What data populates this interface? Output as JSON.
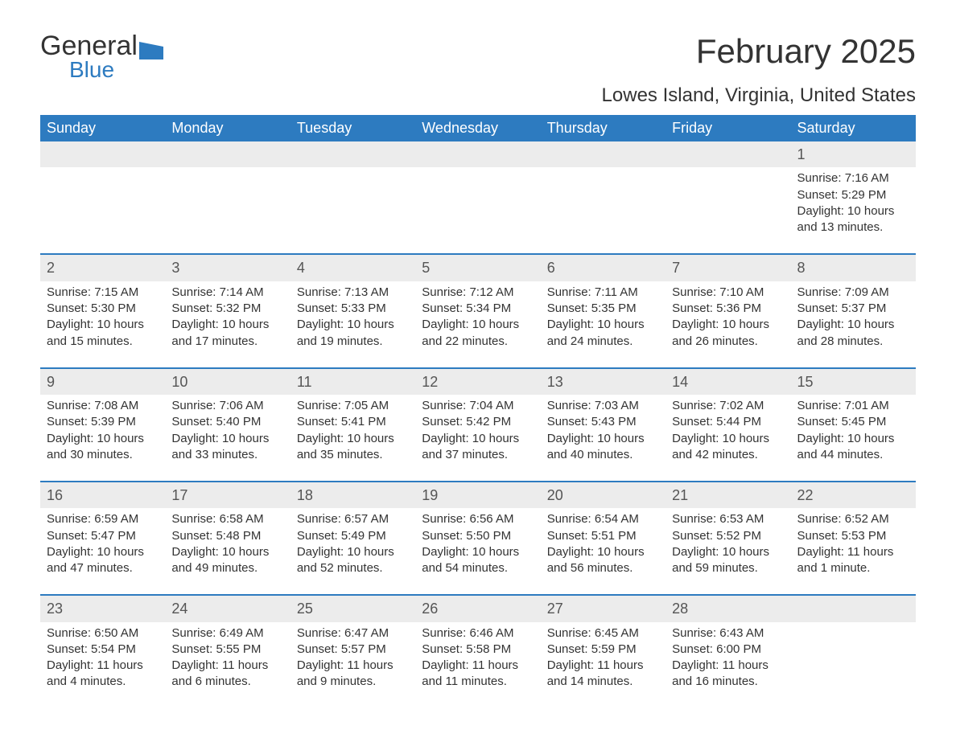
{
  "brand": {
    "word1": "General",
    "word2": "Blue",
    "logo_color": "#2d7bc0"
  },
  "title": "February 2025",
  "location": "Lowes Island, Virginia, United States",
  "colors": {
    "header_bg": "#2d7bc0",
    "header_text": "#ffffff",
    "daynum_bg": "#ececec",
    "row_border": "#2d7bc0",
    "body_text": "#333333",
    "page_bg": "#ffffff"
  },
  "typography": {
    "title_fontsize": 42,
    "location_fontsize": 24,
    "header_fontsize": 18,
    "cell_fontsize": 15,
    "daynum_fontsize": 18
  },
  "days_of_week": [
    "Sunday",
    "Monday",
    "Tuesday",
    "Wednesday",
    "Thursday",
    "Friday",
    "Saturday"
  ],
  "weeks": [
    [
      null,
      null,
      null,
      null,
      null,
      null,
      {
        "num": "1",
        "sunrise": "Sunrise: 7:16 AM",
        "sunset": "Sunset: 5:29 PM",
        "daylight": "Daylight: 10 hours and 13 minutes."
      }
    ],
    [
      {
        "num": "2",
        "sunrise": "Sunrise: 7:15 AM",
        "sunset": "Sunset: 5:30 PM",
        "daylight": "Daylight: 10 hours and 15 minutes."
      },
      {
        "num": "3",
        "sunrise": "Sunrise: 7:14 AM",
        "sunset": "Sunset: 5:32 PM",
        "daylight": "Daylight: 10 hours and 17 minutes."
      },
      {
        "num": "4",
        "sunrise": "Sunrise: 7:13 AM",
        "sunset": "Sunset: 5:33 PM",
        "daylight": "Daylight: 10 hours and 19 minutes."
      },
      {
        "num": "5",
        "sunrise": "Sunrise: 7:12 AM",
        "sunset": "Sunset: 5:34 PM",
        "daylight": "Daylight: 10 hours and 22 minutes."
      },
      {
        "num": "6",
        "sunrise": "Sunrise: 7:11 AM",
        "sunset": "Sunset: 5:35 PM",
        "daylight": "Daylight: 10 hours and 24 minutes."
      },
      {
        "num": "7",
        "sunrise": "Sunrise: 7:10 AM",
        "sunset": "Sunset: 5:36 PM",
        "daylight": "Daylight: 10 hours and 26 minutes."
      },
      {
        "num": "8",
        "sunrise": "Sunrise: 7:09 AM",
        "sunset": "Sunset: 5:37 PM",
        "daylight": "Daylight: 10 hours and 28 minutes."
      }
    ],
    [
      {
        "num": "9",
        "sunrise": "Sunrise: 7:08 AM",
        "sunset": "Sunset: 5:39 PM",
        "daylight": "Daylight: 10 hours and 30 minutes."
      },
      {
        "num": "10",
        "sunrise": "Sunrise: 7:06 AM",
        "sunset": "Sunset: 5:40 PM",
        "daylight": "Daylight: 10 hours and 33 minutes."
      },
      {
        "num": "11",
        "sunrise": "Sunrise: 7:05 AM",
        "sunset": "Sunset: 5:41 PM",
        "daylight": "Daylight: 10 hours and 35 minutes."
      },
      {
        "num": "12",
        "sunrise": "Sunrise: 7:04 AM",
        "sunset": "Sunset: 5:42 PM",
        "daylight": "Daylight: 10 hours and 37 minutes."
      },
      {
        "num": "13",
        "sunrise": "Sunrise: 7:03 AM",
        "sunset": "Sunset: 5:43 PM",
        "daylight": "Daylight: 10 hours and 40 minutes."
      },
      {
        "num": "14",
        "sunrise": "Sunrise: 7:02 AM",
        "sunset": "Sunset: 5:44 PM",
        "daylight": "Daylight: 10 hours and 42 minutes."
      },
      {
        "num": "15",
        "sunrise": "Sunrise: 7:01 AM",
        "sunset": "Sunset: 5:45 PM",
        "daylight": "Daylight: 10 hours and 44 minutes."
      }
    ],
    [
      {
        "num": "16",
        "sunrise": "Sunrise: 6:59 AM",
        "sunset": "Sunset: 5:47 PM",
        "daylight": "Daylight: 10 hours and 47 minutes."
      },
      {
        "num": "17",
        "sunrise": "Sunrise: 6:58 AM",
        "sunset": "Sunset: 5:48 PM",
        "daylight": "Daylight: 10 hours and 49 minutes."
      },
      {
        "num": "18",
        "sunrise": "Sunrise: 6:57 AM",
        "sunset": "Sunset: 5:49 PM",
        "daylight": "Daylight: 10 hours and 52 minutes."
      },
      {
        "num": "19",
        "sunrise": "Sunrise: 6:56 AM",
        "sunset": "Sunset: 5:50 PM",
        "daylight": "Daylight: 10 hours and 54 minutes."
      },
      {
        "num": "20",
        "sunrise": "Sunrise: 6:54 AM",
        "sunset": "Sunset: 5:51 PM",
        "daylight": "Daylight: 10 hours and 56 minutes."
      },
      {
        "num": "21",
        "sunrise": "Sunrise: 6:53 AM",
        "sunset": "Sunset: 5:52 PM",
        "daylight": "Daylight: 10 hours and 59 minutes."
      },
      {
        "num": "22",
        "sunrise": "Sunrise: 6:52 AM",
        "sunset": "Sunset: 5:53 PM",
        "daylight": "Daylight: 11 hours and 1 minute."
      }
    ],
    [
      {
        "num": "23",
        "sunrise": "Sunrise: 6:50 AM",
        "sunset": "Sunset: 5:54 PM",
        "daylight": "Daylight: 11 hours and 4 minutes."
      },
      {
        "num": "24",
        "sunrise": "Sunrise: 6:49 AM",
        "sunset": "Sunset: 5:55 PM",
        "daylight": "Daylight: 11 hours and 6 minutes."
      },
      {
        "num": "25",
        "sunrise": "Sunrise: 6:47 AM",
        "sunset": "Sunset: 5:57 PM",
        "daylight": "Daylight: 11 hours and 9 minutes."
      },
      {
        "num": "26",
        "sunrise": "Sunrise: 6:46 AM",
        "sunset": "Sunset: 5:58 PM",
        "daylight": "Daylight: 11 hours and 11 minutes."
      },
      {
        "num": "27",
        "sunrise": "Sunrise: 6:45 AM",
        "sunset": "Sunset: 5:59 PM",
        "daylight": "Daylight: 11 hours and 14 minutes."
      },
      {
        "num": "28",
        "sunrise": "Sunrise: 6:43 AM",
        "sunset": "Sunset: 6:00 PM",
        "daylight": "Daylight: 11 hours and 16 minutes."
      },
      null
    ]
  ]
}
